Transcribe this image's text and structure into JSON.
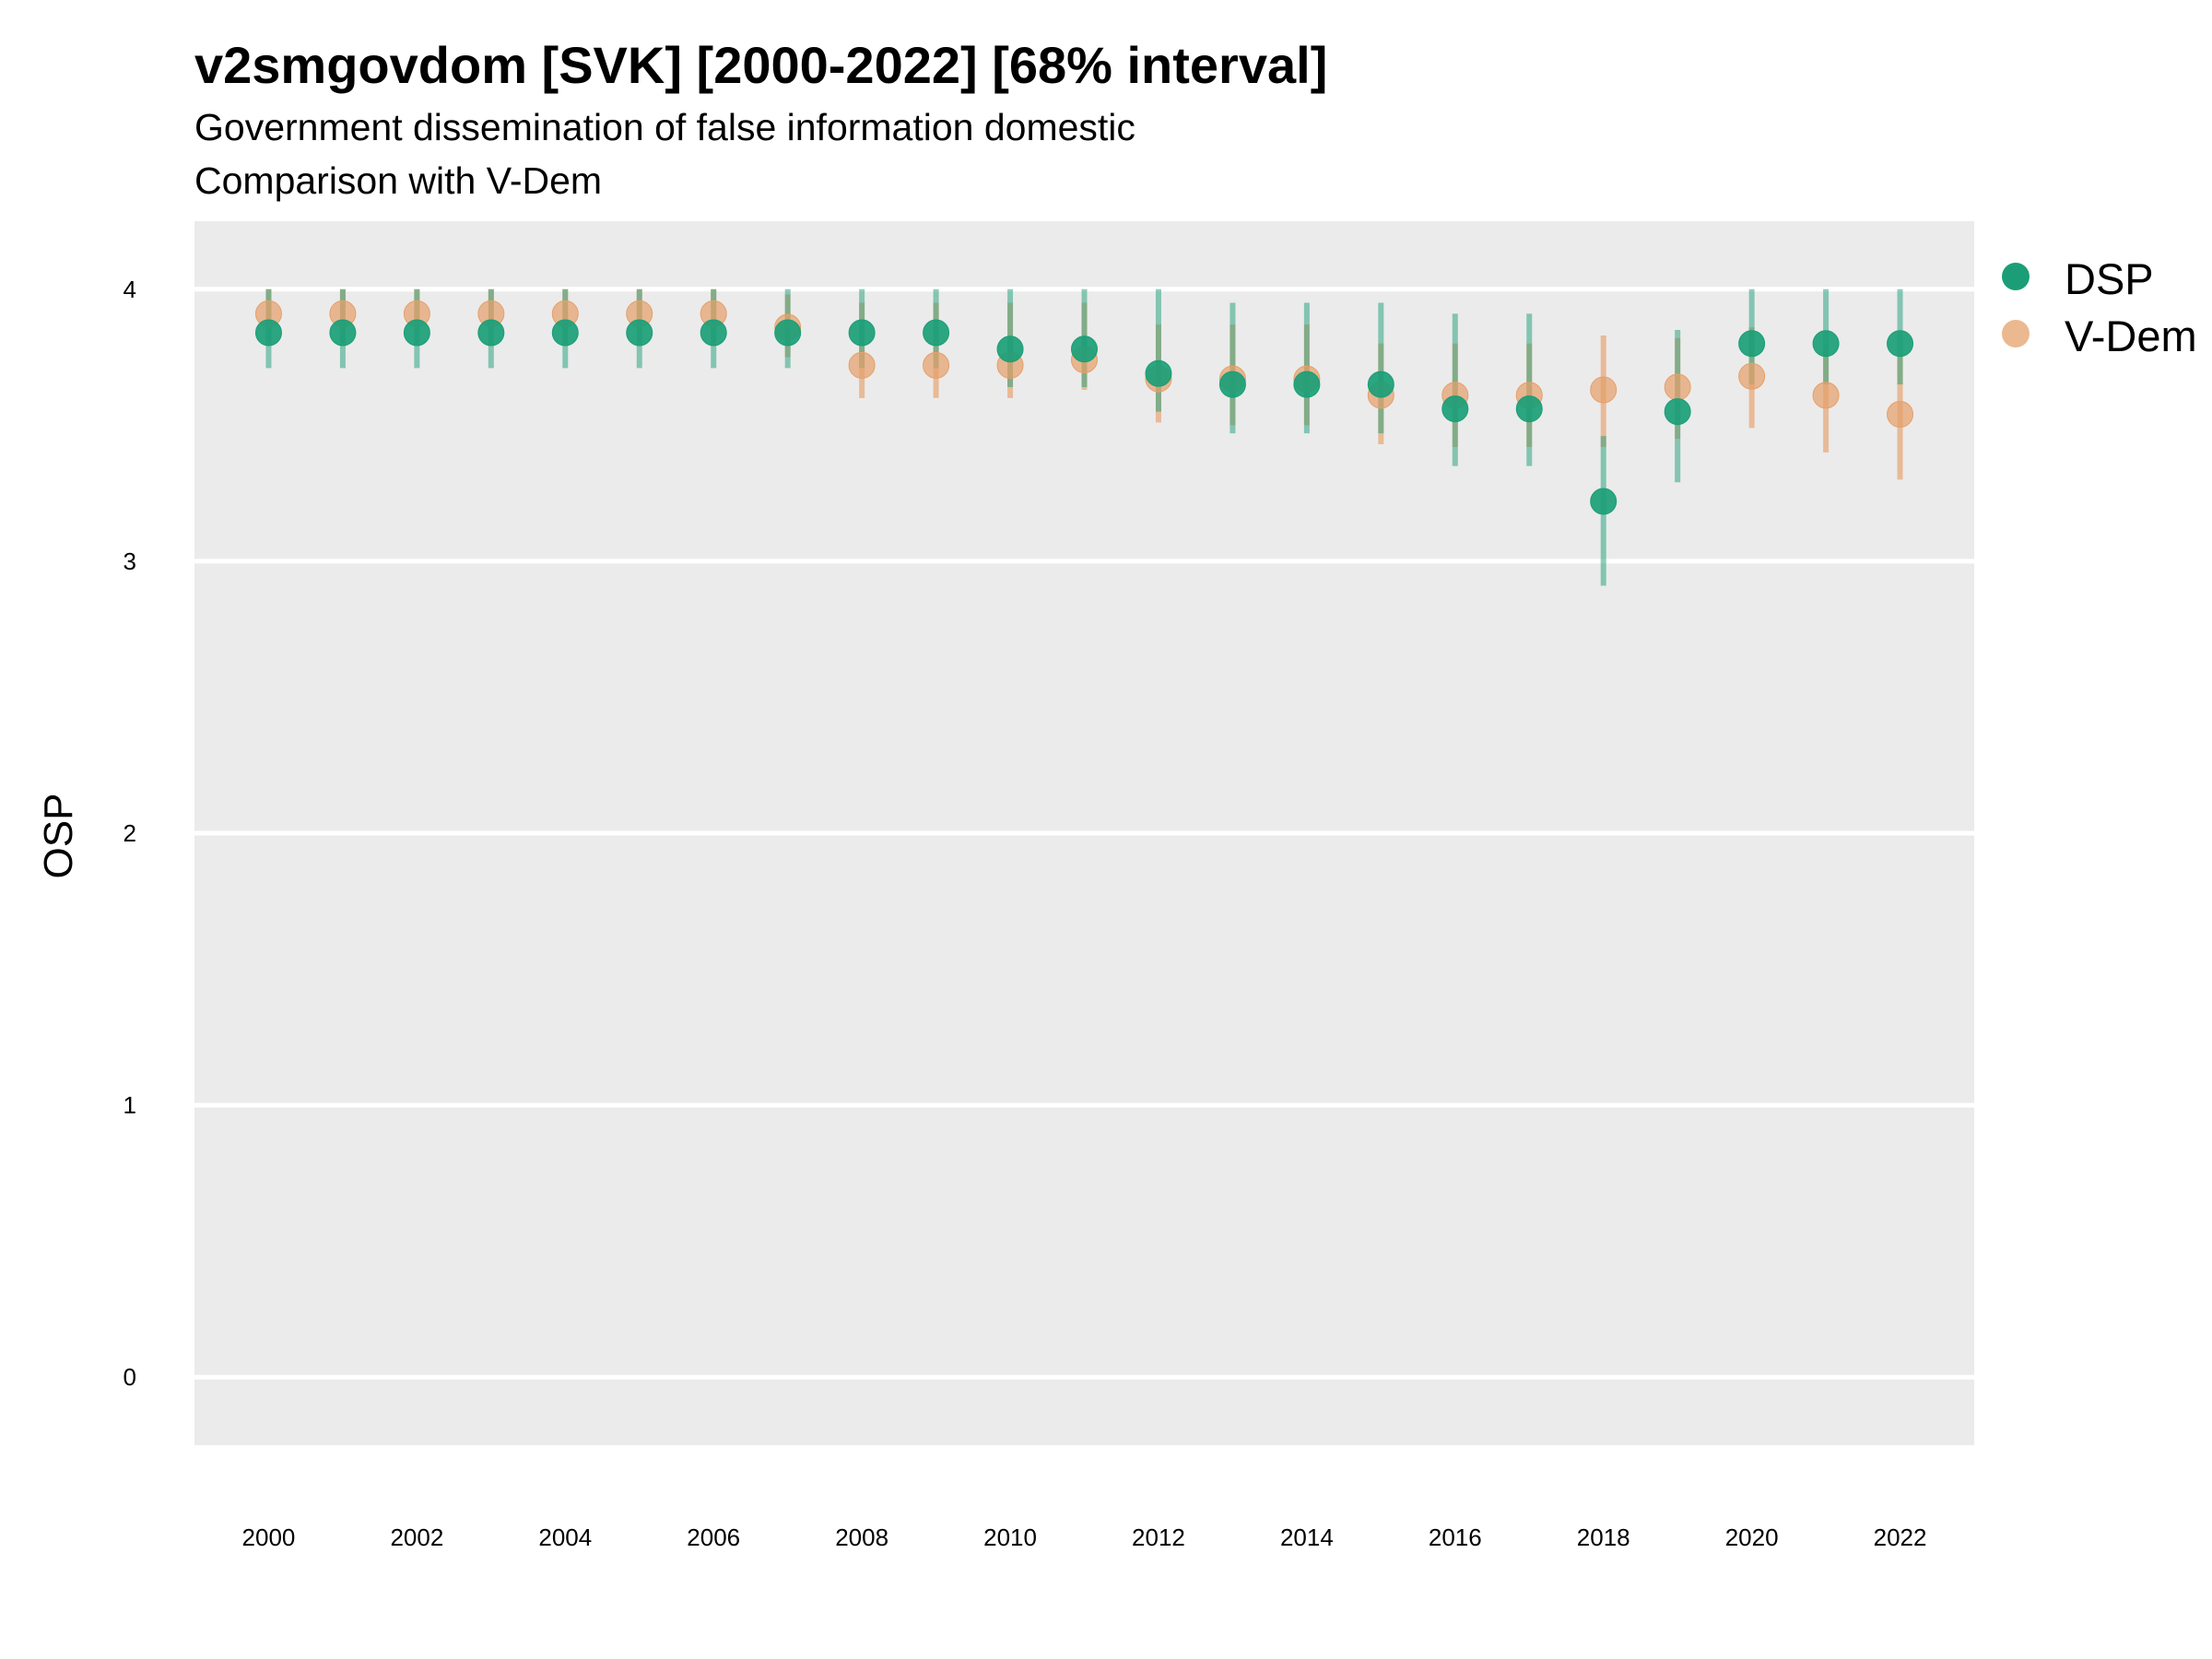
{
  "chart_data": {
    "type": "scatter",
    "title": "v2smgovdom [SVK] [2000-2022] [68% interval]",
    "subtitle_lines": [
      "Government dissemination of false information domestic",
      "Comparison with V-Dem"
    ],
    "xlabel": "",
    "ylabel": "OSP",
    "xlim": [
      1999.0,
      2023.0
    ],
    "ylim": [
      -0.25,
      4.25
    ],
    "x_ticks": [
      "2000",
      "2002",
      "2004",
      "2006",
      "2008",
      "2010",
      "2012",
      "2014",
      "2016",
      "2018",
      "2020",
      "2022"
    ],
    "y_ticks": [
      "0",
      "1",
      "2",
      "3",
      "4"
    ],
    "grid": true,
    "legend_position": "right",
    "x": [
      2000,
      2001,
      2002,
      2003,
      2004,
      2005,
      2006,
      2007,
      2008,
      2009,
      2010,
      2011,
      2012,
      2013,
      2014,
      2015,
      2016,
      2017,
      2018,
      2019,
      2020,
      2021,
      2022
    ],
    "series": [
      {
        "name": "DSP",
        "color": "#1b9e77",
        "values": [
          3.84,
          3.84,
          3.84,
          3.84,
          3.84,
          3.84,
          3.84,
          3.84,
          3.84,
          3.84,
          3.78,
          3.78,
          3.69,
          3.65,
          3.65,
          3.65,
          3.56,
          3.56,
          3.22,
          3.55,
          3.8,
          3.8,
          3.8
        ],
        "lower": [
          3.71,
          3.71,
          3.71,
          3.71,
          3.71,
          3.71,
          3.71,
          3.71,
          3.71,
          3.71,
          3.64,
          3.64,
          3.55,
          3.47,
          3.47,
          3.47,
          3.35,
          3.35,
          2.91,
          3.29,
          3.65,
          3.65,
          3.65
        ],
        "upper": [
          4.0,
          4.0,
          4.0,
          4.0,
          4.0,
          4.0,
          4.0,
          4.0,
          4.0,
          4.0,
          4.0,
          4.0,
          4.0,
          3.95,
          3.95,
          3.95,
          3.91,
          3.91,
          3.46,
          3.85,
          4.0,
          4.0,
          4.0
        ]
      },
      {
        "name": "V-Dem",
        "color": "#e6a06a",
        "values": [
          3.91,
          3.91,
          3.91,
          3.91,
          3.91,
          3.91,
          3.91,
          3.86,
          3.72,
          3.72,
          3.72,
          3.74,
          3.67,
          3.67,
          3.67,
          3.61,
          3.61,
          3.61,
          3.63,
          3.64,
          3.68,
          3.61,
          3.54
        ],
        "lower": [
          3.8,
          3.8,
          3.8,
          3.8,
          3.8,
          3.8,
          3.8,
          3.75,
          3.6,
          3.6,
          3.6,
          3.63,
          3.51,
          3.5,
          3.5,
          3.43,
          3.42,
          3.42,
          3.42,
          3.45,
          3.49,
          3.4,
          3.3
        ],
        "upper": [
          4.0,
          4.0,
          4.0,
          4.0,
          4.0,
          4.0,
          4.0,
          3.98,
          3.95,
          3.95,
          3.95,
          3.95,
          3.87,
          3.87,
          3.87,
          3.8,
          3.8,
          3.8,
          3.83,
          3.82,
          3.86,
          3.8,
          3.76
        ]
      }
    ]
  }
}
